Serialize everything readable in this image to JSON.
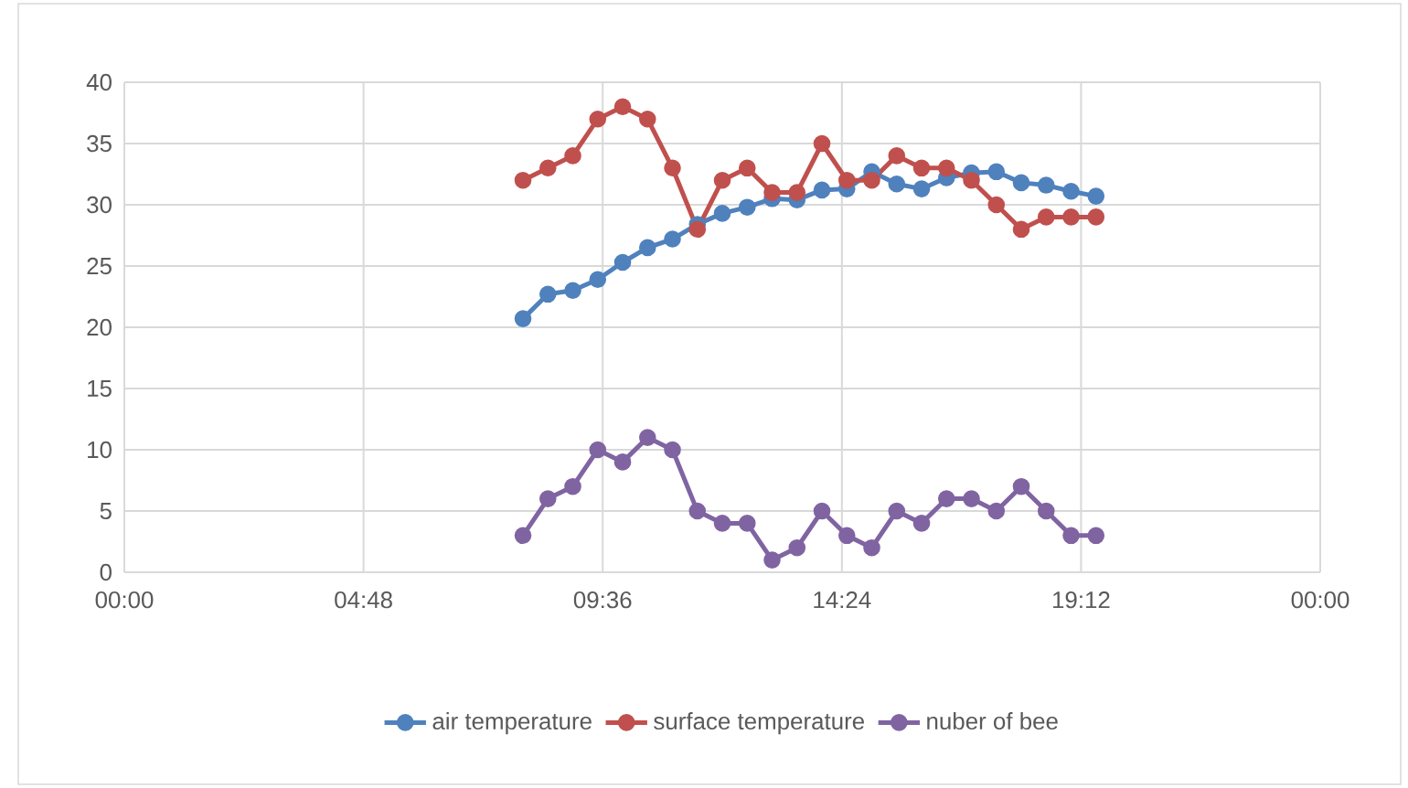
{
  "chart_data": {
    "type": "line",
    "marker": "circle",
    "grid": true,
    "legend": "bottom",
    "x": [
      8,
      8.5,
      9,
      9.5,
      10,
      10.5,
      11,
      11.5,
      12,
      12.5,
      13,
      13.5,
      14,
      14.5,
      15,
      15.5,
      16,
      16.5,
      17,
      17.5,
      18,
      18.5,
      19,
      19.5
    ],
    "xlim": [
      0,
      24
    ],
    "xticks": [
      {
        "value": 0,
        "label": "00:00"
      },
      {
        "value": 4.8,
        "label": "04:48"
      },
      {
        "value": 9.6,
        "label": "09:36"
      },
      {
        "value": 14.4,
        "label": "14:24"
      },
      {
        "value": 19.2,
        "label": "19:12"
      },
      {
        "value": 24,
        "label": "00:00"
      }
    ],
    "ylim": [
      0,
      40
    ],
    "yticks": [
      0,
      5,
      10,
      15,
      20,
      25,
      30,
      35,
      40
    ],
    "series": [
      {
        "name": "air temperature",
        "color": "#4f81bd",
        "values": [
          20.7,
          22.7,
          23.0,
          23.9,
          25.3,
          26.5,
          27.2,
          28.4,
          29.3,
          29.8,
          30.5,
          30.4,
          31.2,
          31.3,
          32.7,
          31.7,
          31.3,
          32.2,
          32.6,
          32.7,
          31.8,
          31.6,
          31.1,
          30.7
        ]
      },
      {
        "name": "surface temperature",
        "color": "#c0504d",
        "values": [
          32,
          33,
          34,
          37,
          38,
          37,
          33,
          28,
          32,
          33,
          31,
          31,
          35,
          32,
          32,
          34,
          33,
          33,
          32,
          30,
          28,
          29,
          29,
          29
        ]
      },
      {
        "name": "nuber of bee",
        "color": "#8064a2",
        "values": [
          3,
          6,
          7,
          10,
          9,
          11,
          10,
          5,
          4,
          4,
          1,
          2,
          5,
          3,
          2,
          5,
          4,
          6,
          6,
          5,
          7,
          5,
          3,
          3
        ]
      }
    ]
  }
}
